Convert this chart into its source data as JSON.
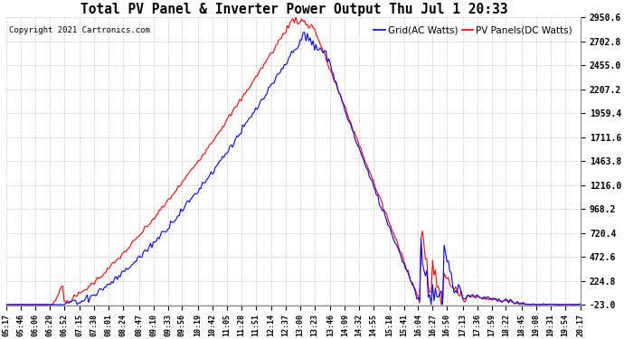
{
  "title": "Total PV Panel & Inverter Power Output Thu Jul 1 20:33",
  "copyright": "Copyright 2021 Cartronics.com",
  "legend_grid": "Grid(AC Watts)",
  "legend_pv": "PV Panels(DC Watts)",
  "color_grid": "blue",
  "color_pv": "red",
  "background_color": "#ffffff",
  "grid_color": "#bbbbbb",
  "yticks": [
    -23.0,
    224.8,
    472.6,
    720.4,
    968.2,
    1216.0,
    1463.8,
    1711.6,
    1959.4,
    2207.2,
    2455.0,
    2702.8,
    2950.6
  ],
  "ymin": -23.0,
  "ymax": 2950.6,
  "xtick_labels": [
    "05:17",
    "05:46",
    "06:06",
    "06:29",
    "06:52",
    "07:15",
    "07:38",
    "08:01",
    "08:24",
    "08:47",
    "09:10",
    "09:33",
    "09:56",
    "10:19",
    "10:42",
    "11:05",
    "11:28",
    "11:51",
    "12:14",
    "12:37",
    "13:00",
    "13:23",
    "13:46",
    "14:09",
    "14:32",
    "14:55",
    "15:18",
    "15:41",
    "16:04",
    "16:27",
    "16:50",
    "17:13",
    "17:36",
    "17:59",
    "18:22",
    "18:45",
    "19:08",
    "19:31",
    "19:54",
    "20:17"
  ]
}
